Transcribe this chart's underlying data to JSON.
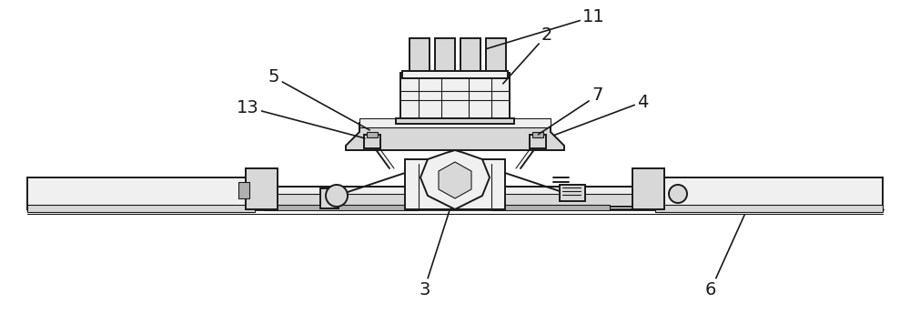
{
  "bg_color": "#ffffff",
  "line_color": "#1a1a1a",
  "figsize": [
    10.0,
    3.56
  ],
  "dpi": 100,
  "label_fontsize": 14,
  "lw_main": 1.4,
  "lw_thin": 0.8,
  "lw_thick": 2.0,
  "gray_light": "#f0f0f0",
  "gray_med": "#d8d8d8",
  "gray_dark": "#b0b0b0",
  "gray_xdark": "#888888"
}
